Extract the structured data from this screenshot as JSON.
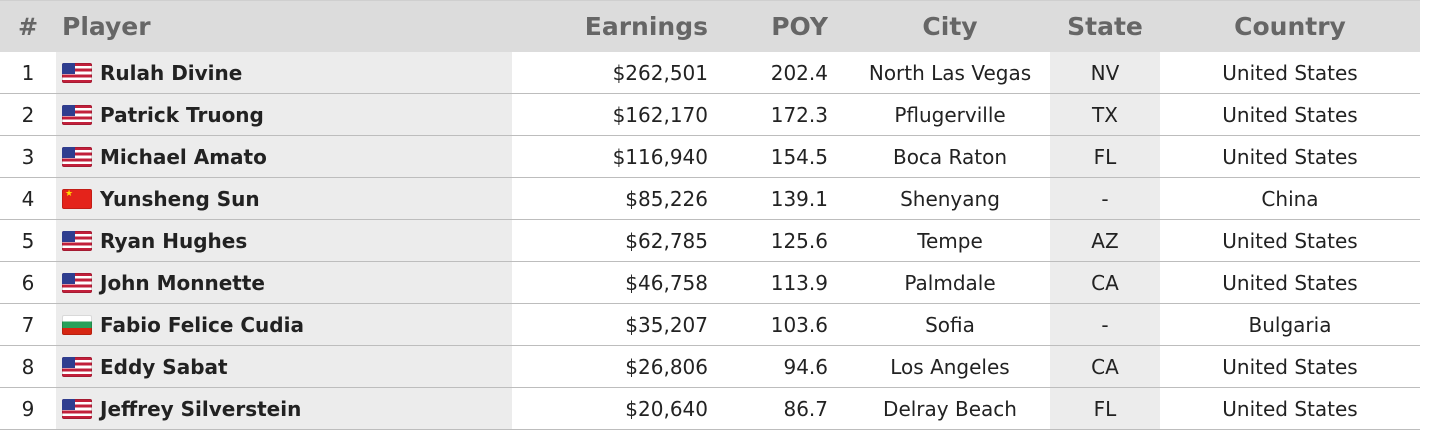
{
  "columns": {
    "rank": "#",
    "player": "Player",
    "earnings": "Earnings",
    "poy": "POY",
    "city": "City",
    "state": "State",
    "country": "Country"
  },
  "rows": [
    {
      "rank": "1",
      "flag": "us",
      "player": "Rulah Divine",
      "earnings": "$262,501",
      "poy": "202.4",
      "city": "North Las Vegas",
      "state": "NV",
      "country": "United States"
    },
    {
      "rank": "2",
      "flag": "us",
      "player": "Patrick Truong",
      "earnings": "$162,170",
      "poy": "172.3",
      "city": "Pflugerville",
      "state": "TX",
      "country": "United States"
    },
    {
      "rank": "3",
      "flag": "us",
      "player": "Michael Amato",
      "earnings": "$116,940",
      "poy": "154.5",
      "city": "Boca Raton",
      "state": "FL",
      "country": "United States"
    },
    {
      "rank": "4",
      "flag": "cn",
      "player": "Yunsheng Sun",
      "earnings": "$85,226",
      "poy": "139.1",
      "city": "Shenyang",
      "state": "-",
      "country": "China"
    },
    {
      "rank": "5",
      "flag": "us",
      "player": "Ryan Hughes",
      "earnings": "$62,785",
      "poy": "125.6",
      "city": "Tempe",
      "state": "AZ",
      "country": "United States"
    },
    {
      "rank": "6",
      "flag": "us",
      "player": "John Monnette",
      "earnings": "$46,758",
      "poy": "113.9",
      "city": "Palmdale",
      "state": "CA",
      "country": "United States"
    },
    {
      "rank": "7",
      "flag": "bg",
      "player": "Fabio Felice Cudia",
      "earnings": "$35,207",
      "poy": "103.6",
      "city": "Sofia",
      "state": "-",
      "country": "Bulgaria"
    },
    {
      "rank": "8",
      "flag": "us",
      "player": "Eddy Sabat",
      "earnings": "$26,806",
      "poy": "94.6",
      "city": "Los Angeles",
      "state": "CA",
      "country": "United States"
    },
    {
      "rank": "9",
      "flag": "us",
      "player": "Jeffrey Silverstein",
      "earnings": "$20,640",
      "poy": "86.7",
      "city": "Delray Beach",
      "state": "FL",
      "country": "United States"
    }
  ]
}
